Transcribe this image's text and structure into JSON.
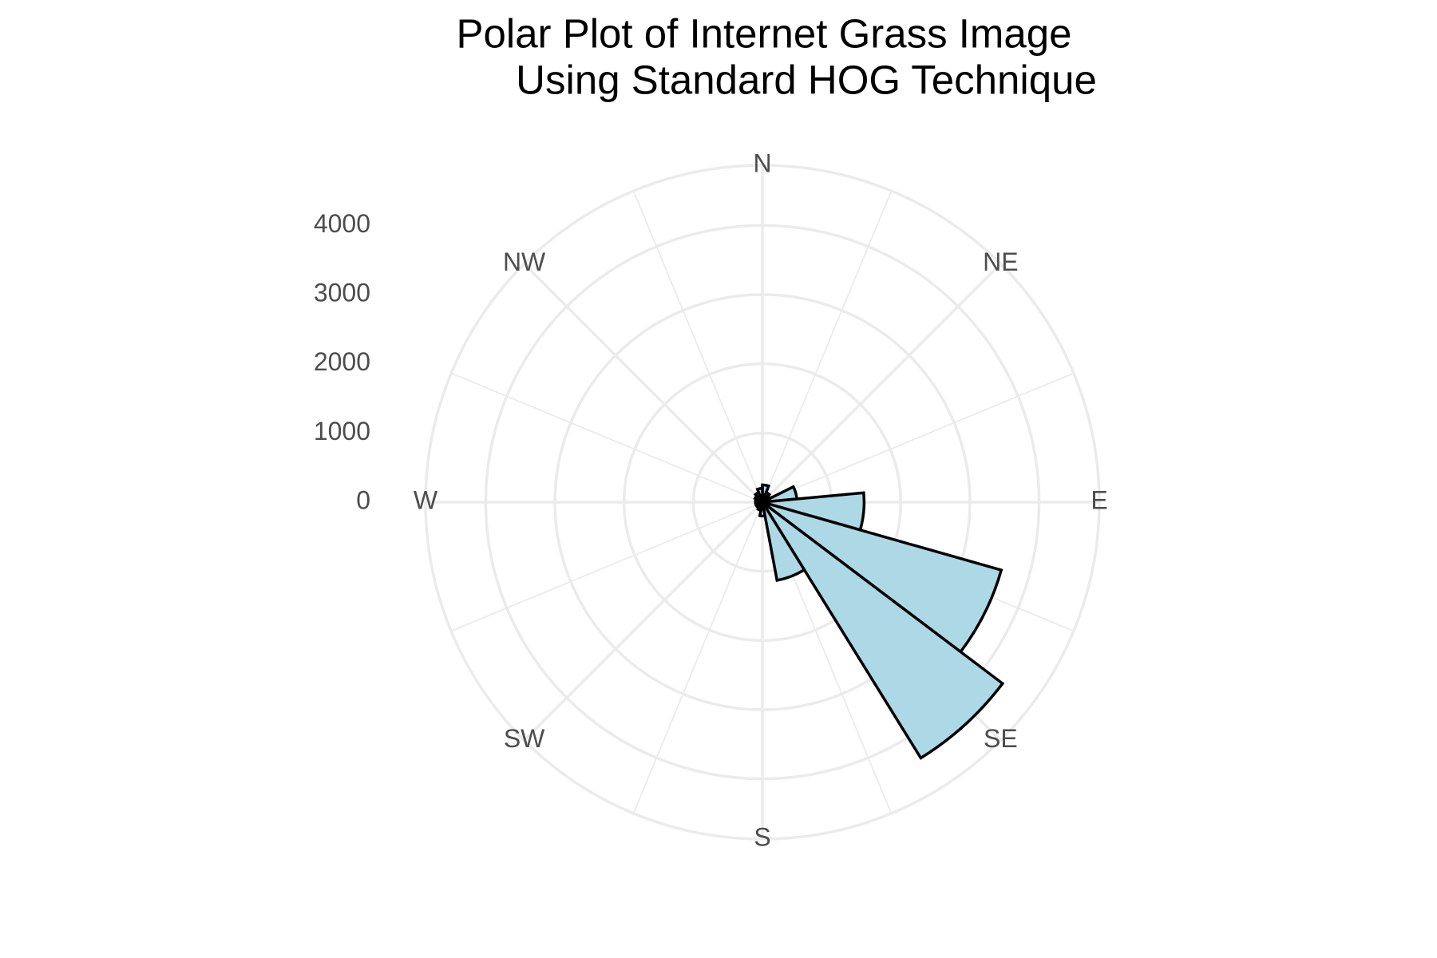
{
  "chart_data": {
    "type": "polar-histogram",
    "title": [
      "Polar Plot of Internet Grass Image",
      "Using Standard HOG Technique"
    ],
    "bins": [
      0,
      21.18,
      42.35,
      63.53,
      84.71,
      105.88,
      127.06,
      148.24,
      169.41,
      190.59,
      211.76,
      232.94,
      254.12,
      275.29,
      296.47,
      317.65,
      338.82,
      360
    ],
    "values": [
      250,
      150,
      120,
      500,
      1470,
      3590,
      4350,
      1150,
      200,
      120,
      100,
      100,
      100,
      100,
      120,
      150,
      200
    ],
    "color": "#add8e6",
    "edge_color": "#000000",
    "xlim": [
      0,
      360
    ],
    "xticks": [
      {
        "value": 0,
        "label": "N"
      },
      {
        "value": 45,
        "label": "NE"
      },
      {
        "value": 90,
        "label": "E"
      },
      {
        "value": 135,
        "label": "SE"
      },
      {
        "value": 180,
        "label": "S"
      },
      {
        "value": 225,
        "label": "SW"
      },
      {
        "value": 270,
        "label": "W"
      },
      {
        "value": 315,
        "label": "NW"
      }
    ],
    "minor_xticks": [
      22.5,
      67.5,
      112.5,
      157.5,
      202.5,
      247.5,
      292.5,
      337.5
    ],
    "ylim": [
      0,
      4870
    ],
    "yticks": [
      0,
      1000,
      2000,
      3000,
      4000
    ],
    "grid": true
  }
}
